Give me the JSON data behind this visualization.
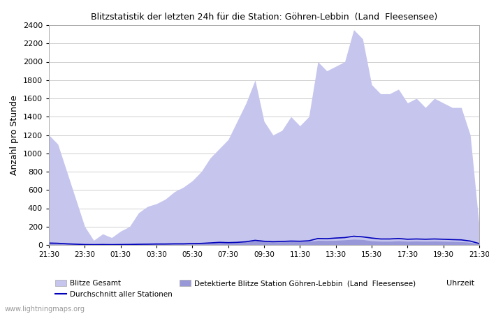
{
  "title": "Blitzstatistik der letzten 24h für die Station: Göhren-Lebbin  (Land  Fleesensee)",
  "ylabel": "Anzahl pro Stunde",
  "xlabel": "Uhrzeit",
  "background_color": "#ffffff",
  "plot_background": "#ffffff",
  "grid_color": "#c8c8c8",
  "ylim": [
    0,
    2400
  ],
  "yticks": [
    0,
    200,
    400,
    600,
    800,
    1000,
    1200,
    1400,
    1600,
    1800,
    2000,
    2200,
    2400
  ],
  "x_labels": [
    "21:30",
    "23:30",
    "01:30",
    "03:30",
    "05:30",
    "07:30",
    "09:30",
    "11:30",
    "13:30",
    "15:30",
    "17:30",
    "19:30",
    "21:30"
  ],
  "color_gesamt_fill": "#c5c5ee",
  "color_station_fill": "#9898d8",
  "color_avg_line": "#0000bb",
  "legend_label_gesamt": "Blitze Gesamt",
  "legend_label_station": "Detektierte Blitze Station Göhren-Lebbin  (Land  Fleesensee)",
  "legend_label_avg": "Durchschnitt aller Stationen",
  "watermark": "www.lightningmaps.org",
  "gesamt_values": [
    1200,
    1100,
    800,
    500,
    200,
    50,
    120,
    80,
    150,
    200,
    350,
    420,
    450,
    500,
    580,
    630,
    700,
    800,
    950,
    1050,
    1150,
    1350,
    1550,
    1800,
    1350,
    1200,
    1250,
    1400,
    1300,
    1400,
    2000,
    1900,
    1950,
    2000,
    2350,
    2250,
    1750,
    1650,
    1650,
    1700,
    1550,
    1600,
    1500,
    1600,
    1550,
    1500,
    1500,
    1200,
    200
  ],
  "station_values": [
    30,
    25,
    15,
    10,
    5,
    3,
    5,
    4,
    5,
    6,
    8,
    10,
    12,
    12,
    14,
    15,
    18,
    20,
    25,
    30,
    28,
    30,
    35,
    45,
    38,
    32,
    34,
    38,
    36,
    38,
    50,
    48,
    50,
    55,
    62,
    58,
    45,
    40,
    40,
    45,
    40,
    42,
    40,
    42,
    40,
    38,
    35,
    28,
    8
  ],
  "avg_values": [
    20,
    18,
    12,
    8,
    4,
    3,
    4,
    3,
    4,
    5,
    7,
    8,
    10,
    10,
    12,
    12,
    15,
    17,
    22,
    28,
    25,
    28,
    35,
    50,
    40,
    35,
    38,
    42,
    40,
    45,
    70,
    68,
    75,
    80,
    95,
    88,
    75,
    65,
    65,
    70,
    62,
    65,
    62,
    65,
    62,
    58,
    55,
    42,
    15
  ]
}
